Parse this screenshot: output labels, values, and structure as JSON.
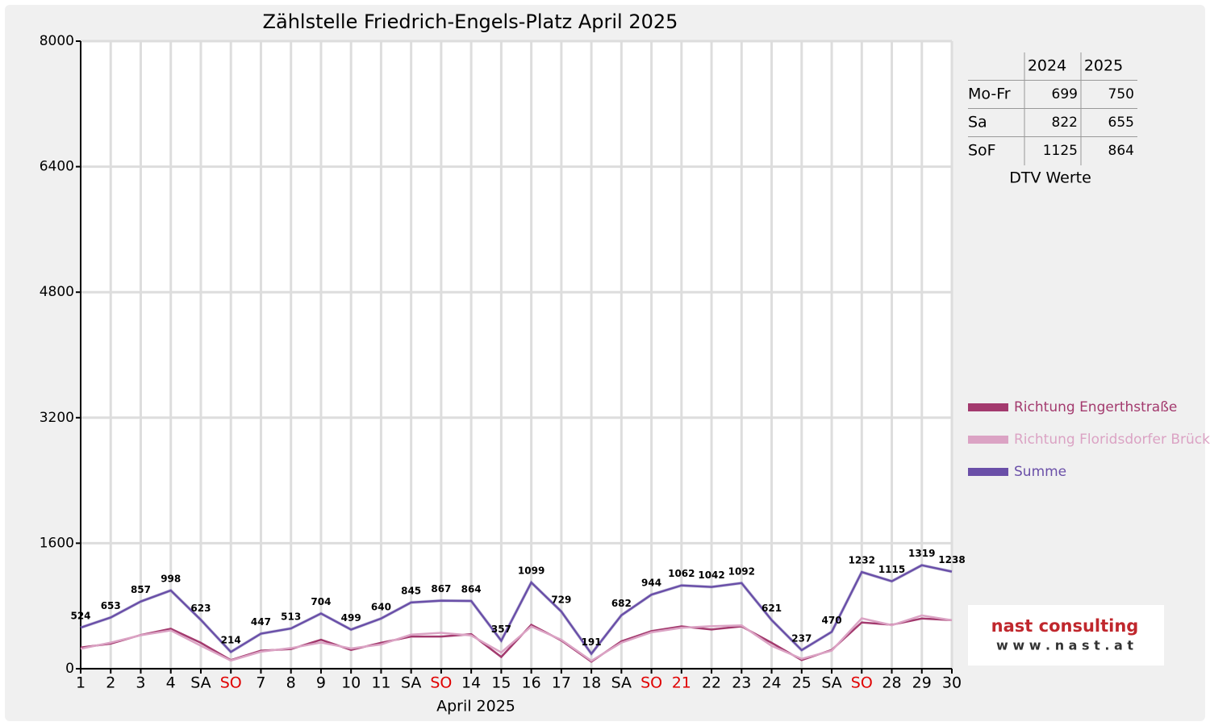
{
  "chart_data": {
    "type": "line",
    "title": "Zählstelle Friedrich-Engels-Platz April 2025",
    "x_label": "April 2025",
    "categories": [
      "1",
      "2",
      "3",
      "4",
      "SA",
      "SO",
      "7",
      "8",
      "9",
      "10",
      "11",
      "SA",
      "SO",
      "14",
      "15",
      "16",
      "17",
      "18",
      "SA",
      "SO",
      "21",
      "22",
      "23",
      "24",
      "25",
      "SA",
      "SO",
      "28",
      "29",
      "30"
    ],
    "category_colors": [
      "#000",
      "#000",
      "#000",
      "#000",
      "#000",
      "#e00000",
      "#000",
      "#000",
      "#000",
      "#000",
      "#000",
      "#000",
      "#e00000",
      "#000",
      "#000",
      "#000",
      "#000",
      "#000",
      "#000",
      "#e00000",
      "#e00000",
      "#000",
      "#000",
      "#000",
      "#000",
      "#000",
      "#e00000",
      "#000",
      "#000",
      "#000"
    ],
    "series": [
      {
        "name": "Richtung Engerthstraße",
        "color": "#a33a6e",
        "values": [
          270,
          320,
          430,
          510,
          330,
          110,
          230,
          250,
          370,
          240,
          330,
          410,
          410,
          440,
          150,
          560,
          360,
          90,
          350,
          480,
          540,
          500,
          540,
          330,
          110,
          240,
          590,
          560,
          640,
          620
        ]
      },
      {
        "name": "Richtung Floridsdorfer Brücke",
        "color": "#dba3c4",
        "values": [
          254,
          333,
          427,
          488,
          293,
          104,
          217,
          263,
          334,
          259,
          310,
          435,
          457,
          424,
          207,
          539,
          369,
          101,
          332,
          464,
          522,
          542,
          552,
          291,
          127,
          230,
          642,
          555,
          679,
          618
        ]
      },
      {
        "name": "Summe",
        "color": "#6a4fa8",
        "values": [
          524,
          653,
          857,
          998,
          623,
          214,
          447,
          513,
          704,
          499,
          640,
          845,
          867,
          864,
          357,
          1099,
          729,
          191,
          682,
          944,
          1062,
          1042,
          1092,
          621,
          237,
          470,
          1232,
          1115,
          1319,
          1238
        ],
        "show_labels": true
      }
    ],
    "ylim": [
      0,
      8000
    ],
    "yticks": [
      0,
      1600,
      3200,
      4800,
      6400,
      8000
    ],
    "grid": true
  },
  "dtv_table": {
    "columns": [
      "2024",
      "2025"
    ],
    "caption": "DTV Werte",
    "rows": [
      {
        "label": "Mo-Fr",
        "values": [
          699,
          750
        ]
      },
      {
        "label": "Sa",
        "values": [
          822,
          655
        ]
      },
      {
        "label": "SoF",
        "values": [
          1125,
          864
        ]
      }
    ]
  },
  "logo": {
    "name": "nast consulting",
    "url": "w w w . n a s t . a t"
  }
}
